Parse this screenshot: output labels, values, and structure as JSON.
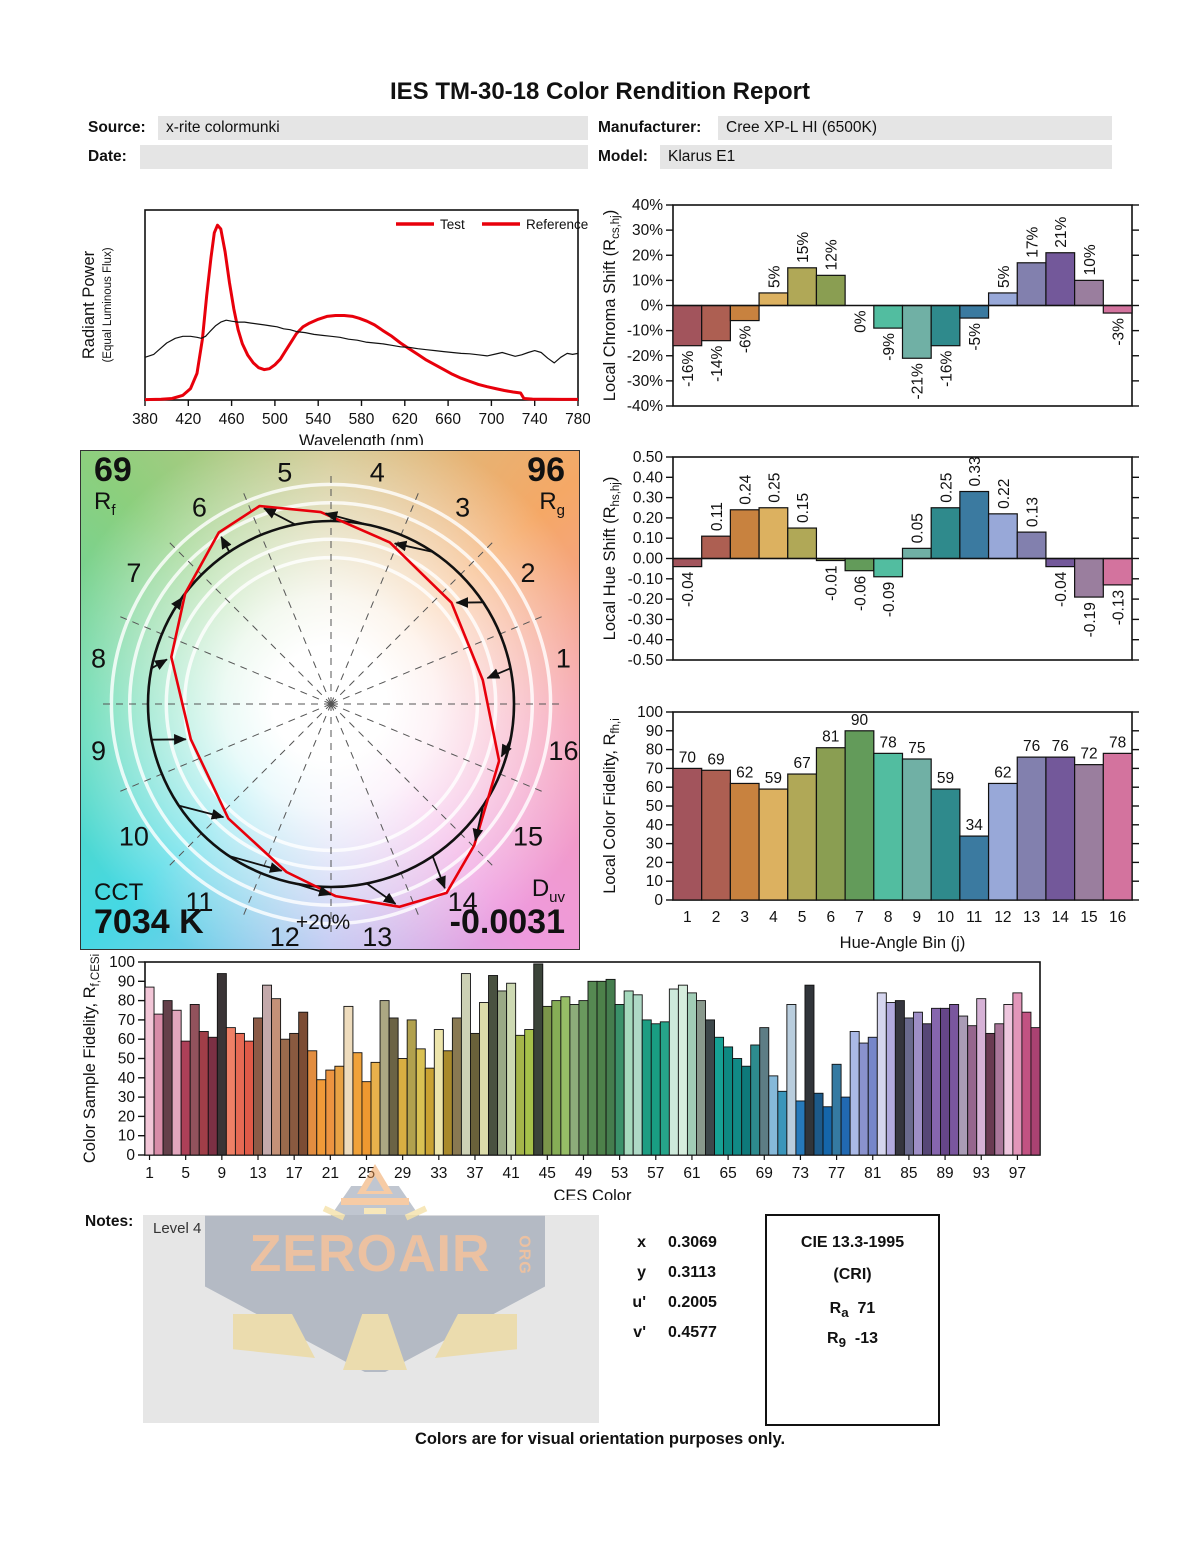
{
  "title": "IES TM-30-18 Color Rendition Report",
  "header": {
    "source_label": "Source:",
    "source_value": "x-rite colormunki",
    "date_label": "Date:",
    "date_value": "",
    "manufacturer_label": "Manufacturer:",
    "manufacturer_value": "Cree XP-L HI (6500K)",
    "model_label": "Model:",
    "model_value": "Klarus E1"
  },
  "cvg": {
    "rf_value": "69",
    "rf_letter": "R",
    "rf_sub": "f",
    "rg_value": "96",
    "rg_letter": "R",
    "rg_sub": "g",
    "cct_label": "CCT",
    "cct_value": "7034 K",
    "duv_letter": "D",
    "duv_sub": "uv",
    "duv_value": "-0.0031",
    "ring_label": "+20%",
    "test_color": "#e8000b",
    "reference_color": "#111111"
  },
  "notes": {
    "label": "Notes:",
    "value": "Level 4"
  },
  "coords": {
    "rows": [
      {
        "label": "x",
        "value": "0.3069"
      },
      {
        "label": "y",
        "value": "0.3113"
      },
      {
        "label": "u'",
        "value": "0.2005"
      },
      {
        "label": "v'",
        "value": "0.4577"
      }
    ]
  },
  "cri_box": {
    "title": "CIE 13.3-1995",
    "subtitle": "(CRI)",
    "ra_letter": "R",
    "ra_sub": "a",
    "ra_value": "71",
    "r9_letter": "R",
    "r9_sub": "9",
    "r9_value": "-13"
  },
  "watermark": {
    "text": "ZEROAIR",
    "org": "ORG"
  },
  "footer": "Colors are for visual orientation purposes only.",
  "bin_colors": [
    "#a2545c",
    "#ad5f52",
    "#c8823f",
    "#dcb160",
    "#b0a857",
    "#8a9e52",
    "#639b5a",
    "#52bda0",
    "#70b0a5",
    "#2f8a8c",
    "#3b7aa0",
    "#98a8d8",
    "#8280ae",
    "#73589a",
    "#9a7e9e",
    "#d3739e"
  ],
  "chart_data": [
    {
      "id": "spd",
      "type": "line",
      "xlabel": "Wavelength (nm)",
      "ylabel_line1": "Radiant Power",
      "ylabel_line2": "(Equal Luminous Flux)",
      "xlim": [
        380,
        780
      ],
      "xticks": [
        380,
        420,
        460,
        500,
        540,
        580,
        620,
        660,
        700,
        740,
        780
      ],
      "legend": [
        {
          "label": "Test",
          "line_color": "#e8000b",
          "text_color": "#e8000b"
        },
        {
          "label": "Reference",
          "line_color": "#e8000b",
          "text_color": "#111111"
        }
      ],
      "series": [
        {
          "name": "Test",
          "color": "#e8000b",
          "width": 3,
          "points": [
            [
              380,
              0.002
            ],
            [
              395,
              0.004
            ],
            [
              405,
              0.008
            ],
            [
              415,
              0.025
            ],
            [
              422,
              0.06
            ],
            [
              428,
              0.14
            ],
            [
              433,
              0.32
            ],
            [
              437,
              0.55
            ],
            [
              441,
              0.75
            ],
            [
              444,
              0.88
            ],
            [
              447,
              0.92
            ],
            [
              450,
              0.9
            ],
            [
              454,
              0.78
            ],
            [
              458,
              0.62
            ],
            [
              462,
              0.48
            ],
            [
              466,
              0.37
            ],
            [
              470,
              0.295
            ],
            [
              475,
              0.235
            ],
            [
              480,
              0.195
            ],
            [
              485,
              0.17
            ],
            [
              490,
              0.16
            ],
            [
              495,
              0.165
            ],
            [
              500,
              0.185
            ],
            [
              505,
              0.215
            ],
            [
              510,
              0.26
            ],
            [
              515,
              0.305
            ],
            [
              520,
              0.35
            ],
            [
              526,
              0.385
            ],
            [
              532,
              0.405
            ],
            [
              540,
              0.425
            ],
            [
              548,
              0.44
            ],
            [
              556,
              0.445
            ],
            [
              564,
              0.445
            ],
            [
              572,
              0.44
            ],
            [
              578,
              0.43
            ],
            [
              585,
              0.415
            ],
            [
              592,
              0.395
            ],
            [
              600,
              0.365
            ],
            [
              608,
              0.335
            ],
            [
              616,
              0.3
            ],
            [
              624,
              0.27
            ],
            [
              632,
              0.24
            ],
            [
              640,
              0.21
            ],
            [
              648,
              0.185
            ],
            [
              656,
              0.16
            ],
            [
              664,
              0.135
            ],
            [
              672,
              0.115
            ],
            [
              680,
              0.098
            ],
            [
              688,
              0.082
            ],
            [
              696,
              0.07
            ],
            [
              704,
              0.06
            ],
            [
              712,
              0.05
            ],
            [
              720,
              0.042
            ],
            [
              727,
              0.037
            ],
            [
              730,
              0.008
            ],
            [
              738,
              0.005
            ],
            [
              750,
              0.004
            ],
            [
              765,
              0.003
            ],
            [
              780,
              0.003
            ]
          ]
        },
        {
          "name": "Reference",
          "color": "#111111",
          "width": 1.2,
          "points": [
            [
              380,
              0.225
            ],
            [
              388,
              0.24
            ],
            [
              394,
              0.27
            ],
            [
              400,
              0.3
            ],
            [
              408,
              0.325
            ],
            [
              415,
              0.335
            ],
            [
              422,
              0.335
            ],
            [
              428,
              0.33
            ],
            [
              432,
              0.325
            ],
            [
              436,
              0.335
            ],
            [
              440,
              0.36
            ],
            [
              445,
              0.39
            ],
            [
              450,
              0.41
            ],
            [
              455,
              0.42
            ],
            [
              460,
              0.415
            ],
            [
              466,
              0.41
            ],
            [
              472,
              0.41
            ],
            [
              478,
              0.405
            ],
            [
              484,
              0.4
            ],
            [
              490,
              0.395
            ],
            [
              496,
              0.39
            ],
            [
              502,
              0.385
            ],
            [
              508,
              0.375
            ],
            [
              514,
              0.37
            ],
            [
              520,
              0.36
            ],
            [
              528,
              0.355
            ],
            [
              536,
              0.345
            ],
            [
              544,
              0.34
            ],
            [
              552,
              0.335
            ],
            [
              560,
              0.33
            ],
            [
              568,
              0.32
            ],
            [
              576,
              0.315
            ],
            [
              584,
              0.305
            ],
            [
              592,
              0.3
            ],
            [
              600,
              0.295
            ],
            [
              608,
              0.288
            ],
            [
              616,
              0.28
            ],
            [
              624,
              0.277
            ],
            [
              632,
              0.27
            ],
            [
              640,
              0.265
            ],
            [
              648,
              0.26
            ],
            [
              656,
              0.255
            ],
            [
              664,
              0.25
            ],
            [
              672,
              0.245
            ],
            [
              680,
              0.243
            ],
            [
              688,
              0.238
            ],
            [
              696,
              0.232
            ],
            [
              704,
              0.242
            ],
            [
              710,
              0.25
            ],
            [
              716,
              0.24
            ],
            [
              722,
              0.23
            ],
            [
              728,
              0.238
            ],
            [
              734,
              0.25
            ],
            [
              740,
              0.26
            ],
            [
              746,
              0.25
            ],
            [
              752,
              0.22
            ],
            [
              758,
              0.195
            ],
            [
              764,
              0.225
            ],
            [
              770,
              0.245
            ],
            [
              775,
              0.24
            ],
            [
              780,
              0.245
            ]
          ]
        }
      ]
    },
    {
      "id": "chroma_shift",
      "type": "bar",
      "ylabel_pre": "Local Chroma Shift (R",
      "ylabel_sub": "cs,hj",
      "ylabel_post": ")",
      "ylim": [
        -40,
        40
      ],
      "ystep": 10,
      "yunit": "%",
      "categories": [
        1,
        2,
        3,
        4,
        5,
        6,
        7,
        8,
        9,
        10,
        11,
        12,
        13,
        14,
        15,
        16
      ],
      "values": [
        -16,
        -14,
        -6,
        5,
        15,
        12,
        0,
        -9,
        -21,
        -16,
        -5,
        5,
        17,
        21,
        10,
        -3
      ],
      "labels": [
        "-16%",
        "-14%",
        "-6%",
        "5%",
        "15%",
        "12%",
        "0%",
        "-9%",
        "-21%",
        "-16%",
        "-5%",
        "5%",
        "17%",
        "21%",
        "10%",
        "-3%"
      ]
    },
    {
      "id": "hue_shift",
      "type": "bar",
      "ylabel_pre": "Local Hue Shift (R",
      "ylabel_sub": "hs,hj",
      "ylabel_post": ")",
      "ylim": [
        -0.5,
        0.5
      ],
      "ystep": 0.1,
      "categories": [
        1,
        2,
        3,
        4,
        5,
        6,
        7,
        8,
        9,
        10,
        11,
        12,
        13,
        14,
        15,
        16
      ],
      "values": [
        -0.04,
        0.11,
        0.24,
        0.25,
        0.15,
        -0.01,
        -0.06,
        -0.09,
        0.05,
        0.25,
        0.33,
        0.22,
        0.13,
        -0.04,
        -0.19,
        -0.13
      ],
      "labels": [
        "-0.04",
        "0.11",
        "0.24",
        "0.25",
        "0.15",
        "-0.01",
        "-0.06",
        "-0.09",
        "0.05",
        "0.25",
        "0.33",
        "0.22",
        "0.13",
        "-0.04",
        "-0.19",
        "-0.13"
      ]
    },
    {
      "id": "local_fidelity",
      "type": "bar",
      "ylabel_pre": "Local Color Fidelity, R",
      "ylabel_sub": "fh,i",
      "ylabel_post": "",
      "xlabel": "Hue-Angle Bin (j)",
      "ylim": [
        0,
        100
      ],
      "ystep": 10,
      "categories": [
        1,
        2,
        3,
        4,
        5,
        6,
        7,
        8,
        9,
        10,
        11,
        12,
        13,
        14,
        15,
        16
      ],
      "values": [
        70,
        69,
        62,
        59,
        67,
        81,
        90,
        78,
        75,
        59,
        34,
        62,
        76,
        76,
        72,
        78
      ]
    },
    {
      "id": "ces_fidelity",
      "type": "bar",
      "ylabel_pre": "Color Sample Fidelity, R",
      "ylabel_sub": "f,CESi",
      "ylabel_post": "",
      "xlabel": "CES Color",
      "ylim": [
        0,
        100
      ],
      "ystep": 10,
      "xticks": [
        1,
        5,
        9,
        13,
        17,
        21,
        25,
        29,
        33,
        37,
        41,
        45,
        49,
        53,
        57,
        61,
        65,
        69,
        73,
        77,
        81,
        85,
        89,
        93,
        97
      ],
      "values": [
        87,
        73,
        80,
        75,
        59,
        78,
        64,
        61,
        94,
        66,
        63,
        59,
        71,
        88,
        81,
        60,
        63,
        74,
        54,
        39,
        44,
        46,
        77,
        53,
        38,
        48,
        80,
        71,
        50,
        70,
        55,
        45,
        65,
        54,
        71,
        94,
        63,
        79,
        93,
        85,
        89,
        62,
        65,
        99,
        77,
        80,
        82,
        78,
        80,
        90,
        90,
        91,
        78,
        85,
        83,
        70,
        68,
        69,
        86,
        88,
        84,
        80,
        70,
        61,
        56,
        50,
        46,
        57,
        66,
        41,
        33,
        78,
        28,
        88,
        32,
        25,
        47,
        30,
        64,
        58,
        61,
        84,
        79,
        80,
        71,
        74,
        68,
        76,
        76,
        78,
        72,
        67,
        81,
        63,
        68,
        78,
        84,
        74,
        66
      ],
      "colors": [
        "#f2c6d7",
        "#d88ca8",
        "#64404a",
        "#e2a6bd",
        "#ad4058",
        "#92525c",
        "#a03e48",
        "#7c3044",
        "#3a3436",
        "#ef8066",
        "#e66a54",
        "#df5a48",
        "#8c5a46",
        "#c3a9ab",
        "#c49178",
        "#9a6a4c",
        "#8a5a40",
        "#7c4c34",
        "#e28d40",
        "#f09a38",
        "#ec9440",
        "#e8a244",
        "#eedcbd",
        "#f0a23a",
        "#ee9830",
        "#e9b14c",
        "#aca883",
        "#6b6345",
        "#d8ae42",
        "#b1a14e",
        "#d9c153",
        "#c9a232",
        "#ede5ab",
        "#a98a2c",
        "#897952",
        "#cdd1b5",
        "#69613a",
        "#dcdcaa",
        "#495140",
        "#9aa986",
        "#cdd9b2",
        "#a5b54a",
        "#a6c14a",
        "#3b4439",
        "#7b954a",
        "#86ad56",
        "#96bd66",
        "#8dac7a",
        "#6a995e",
        "#568952",
        "#4d814a",
        "#457d4e",
        "#3a916a",
        "#a5d9bd",
        "#aed9c6",
        "#1d9d82",
        "#199d82",
        "#26a58a",
        "#cde9da",
        "#d6eddd",
        "#a1cdb6",
        "#89998c",
        "#3d474a",
        "#16a194",
        "#0e8982",
        "#118a86",
        "#0e797a",
        "#2d8b8e",
        "#5d7d85",
        "#86b9d9",
        "#3a95ba",
        "#b9cddd",
        "#2679ba",
        "#31353a",
        "#1d5a8a",
        "#1566aa",
        "#357aa2",
        "#2169b2",
        "#aab9e6",
        "#8a92ce",
        "#7686ca",
        "#d5d5ee",
        "#b2aade",
        "#35353e",
        "#6a6a8e",
        "#9e8ec6",
        "#564676",
        "#8666ae",
        "#664689",
        "#7a569e",
        "#aa9cb6",
        "#96668e",
        "#d6b2d6",
        "#6a3a52",
        "#aa769a",
        "#eec6de",
        "#e296ba",
        "#c25282",
        "#aa4272"
      ]
    }
  ]
}
